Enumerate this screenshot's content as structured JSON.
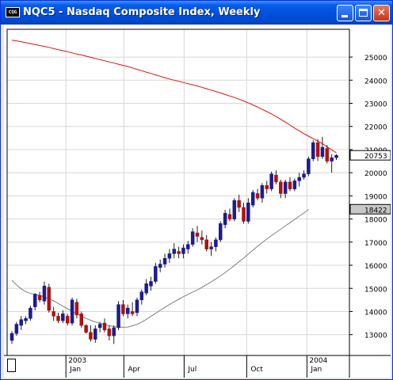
{
  "window": {
    "title": "NQC5 - Nasdaq Composite Index, Weekly",
    "icon_label": "CQG",
    "buttons": [
      "minimize",
      "maximize",
      "close"
    ]
  },
  "colors": {
    "up_candle": "#1c1c8c",
    "down_candle": "#b01010",
    "slow_ma": "#e01010",
    "fast_ma": "#808080",
    "last_price_box": "#ffffff",
    "ma_price_box": "#c8c8c8"
  },
  "readouts": {
    "last_price": "20753",
    "ma_value": "18422"
  },
  "chart_data": {
    "type": "candlestick",
    "title": "NQC5 - Nasdaq Composite Index, Weekly",
    "y_ticks": [
      13000,
      14000,
      15000,
      16000,
      17000,
      18000,
      19000,
      20000,
      21000,
      22000,
      23000,
      24000,
      25000
    ],
    "y_tick_labels": [
      "13000",
      "14000",
      "15000",
      "16000",
      "17000",
      "18000",
      "19000",
      "20000",
      "21000",
      "22000",
      "23000",
      "24000",
      "25000"
    ],
    "ylim": [
      12100,
      26200
    ],
    "x_labels": [
      "Jan",
      "Apr",
      "Jul",
      "Oct",
      "Jan"
    ],
    "year_labels": [
      "2003",
      "2004"
    ],
    "grid": true,
    "bars": [
      [
        12750,
        13150,
        12600,
        13050
      ],
      [
        13050,
        13550,
        12950,
        13450
      ],
      [
        13400,
        13800,
        13200,
        13650
      ],
      [
        13600,
        13800,
        13450,
        13700
      ],
      [
        13700,
        14250,
        13600,
        14150
      ],
      [
        14200,
        14800,
        14050,
        14750
      ],
      [
        14700,
        14850,
        14400,
        14500
      ],
      [
        14450,
        15300,
        14300,
        15100
      ],
      [
        15050,
        15200,
        13950,
        14050
      ],
      [
        14000,
        14200,
        13600,
        13800
      ],
      [
        13800,
        13950,
        13500,
        13600
      ],
      [
        13600,
        14050,
        13500,
        13900
      ],
      [
        13800,
        13900,
        13400,
        13500
      ],
      [
        13500,
        14600,
        13400,
        14500
      ],
      [
        14400,
        14550,
        13700,
        13850
      ],
      [
        13900,
        14000,
        13300,
        13400
      ],
      [
        13400,
        13450,
        13050,
        13100
      ],
      [
        13100,
        13400,
        12700,
        12800
      ],
      [
        12800,
        13400,
        12650,
        13250
      ],
      [
        13300,
        13550,
        13100,
        13450
      ],
      [
        13500,
        13700,
        13100,
        13200
      ],
      [
        13250,
        13400,
        12750,
        12950
      ],
      [
        12950,
        13400,
        12600,
        13300
      ],
      [
        13300,
        14450,
        13200,
        14300
      ],
      [
        14300,
        14500,
        13800,
        13900
      ],
      [
        13900,
        14300,
        13700,
        14150
      ],
      [
        14000,
        14400,
        13800,
        13900
      ],
      [
        13950,
        14600,
        13800,
        14500
      ],
      [
        14500,
        14950,
        14300,
        14850
      ],
      [
        14800,
        15400,
        14700,
        15200
      ],
      [
        15100,
        15500,
        14900,
        15300
      ],
      [
        15300,
        16100,
        15200,
        15950
      ],
      [
        15900,
        16250,
        15700,
        16050
      ],
      [
        16050,
        16500,
        15900,
        16300
      ],
      [
        16300,
        16700,
        16100,
        16500
      ],
      [
        16500,
        16950,
        16300,
        16700
      ],
      [
        16600,
        16800,
        16300,
        16500
      ],
      [
        16500,
        16900,
        16300,
        16750
      ],
      [
        16700,
        17050,
        16500,
        16900
      ],
      [
        16900,
        17600,
        16800,
        17450
      ],
      [
        17400,
        17700,
        17000,
        17250
      ],
      [
        17200,
        17500,
        16900,
        17100
      ],
      [
        17100,
        17300,
        16600,
        16700
      ],
      [
        16700,
        17000,
        16400,
        16800
      ],
      [
        16800,
        17200,
        16600,
        17100
      ],
      [
        17100,
        17900,
        17000,
        17800
      ],
      [
        17750,
        18400,
        17600,
        18250
      ],
      [
        18200,
        18450,
        17900,
        18000
      ],
      [
        18000,
        18900,
        17900,
        18800
      ],
      [
        18800,
        19050,
        18300,
        18500
      ],
      [
        18500,
        18700,
        17800,
        17900
      ],
      [
        17900,
        18900,
        17800,
        18700
      ],
      [
        18600,
        19250,
        18500,
        19150
      ],
      [
        19100,
        19300,
        18800,
        18900
      ],
      [
        18900,
        19550,
        18700,
        19450
      ],
      [
        19450,
        19650,
        19100,
        19300
      ],
      [
        19300,
        20050,
        19200,
        19950
      ],
      [
        19900,
        20100,
        19500,
        19600
      ],
      [
        19600,
        19700,
        18900,
        19100
      ],
      [
        19100,
        19700,
        18900,
        19600
      ],
      [
        19600,
        19800,
        19200,
        19300
      ],
      [
        19300,
        19750,
        19200,
        19650
      ],
      [
        19650,
        20000,
        19400,
        19800
      ],
      [
        19800,
        20100,
        19700,
        19950
      ],
      [
        19950,
        20700,
        19850,
        20600
      ],
      [
        20600,
        21400,
        20500,
        21300
      ],
      [
        21300,
        21450,
        20500,
        20700
      ],
      [
        20700,
        21550,
        20600,
        21100
      ],
      [
        21050,
        21200,
        20400,
        20500
      ],
      [
        20500,
        20800,
        20000,
        20650
      ],
      [
        20650,
        20800,
        20550,
        20753
      ]
    ],
    "series": [
      {
        "name": "Slow MA",
        "values": [
          25730,
          25700,
          25660,
          25620,
          25580,
          25540,
          25500,
          25460,
          25420,
          25370,
          25320,
          25280,
          25230,
          25180,
          25130,
          25090,
          25040,
          24990,
          24940,
          24890,
          24840,
          24790,
          24740,
          24690,
          24640,
          24590,
          24530,
          24470,
          24410,
          24350,
          24290,
          24230,
          24170,
          24110,
          24050,
          24000,
          23950,
          23900,
          23850,
          23800,
          23750,
          23690,
          23630,
          23570,
          23510,
          23450,
          23380,
          23320,
          23250,
          23180,
          23100,
          23020,
          22930,
          22840,
          22740,
          22640,
          22540,
          22430,
          22310,
          22190,
          22060,
          21930,
          21810,
          21690,
          21580,
          21470,
          21370,
          21250,
          21120,
          20990,
          20860
        ]
      },
      {
        "name": "Fast MA",
        "values": [
          15350,
          15150,
          14980,
          14850,
          14780,
          14740,
          14700,
          14630,
          14550,
          14460,
          14350,
          14230,
          14120,
          14010,
          13900,
          13800,
          13700,
          13620,
          13550,
          13490,
          13440,
          13390,
          13350,
          13330,
          13320,
          13330,
          13380,
          13450,
          13540,
          13660,
          13790,
          13920,
          14050,
          14180,
          14300,
          14420,
          14530,
          14640,
          14740,
          14840,
          14930,
          15040,
          15160,
          15280,
          15410,
          15540,
          15680,
          15830,
          15990,
          16150,
          16310,
          16480,
          16650,
          16820,
          16980,
          17130,
          17280,
          17420,
          17560,
          17700,
          17840,
          17980,
          18120,
          18260,
          18410
        ]
      }
    ]
  }
}
